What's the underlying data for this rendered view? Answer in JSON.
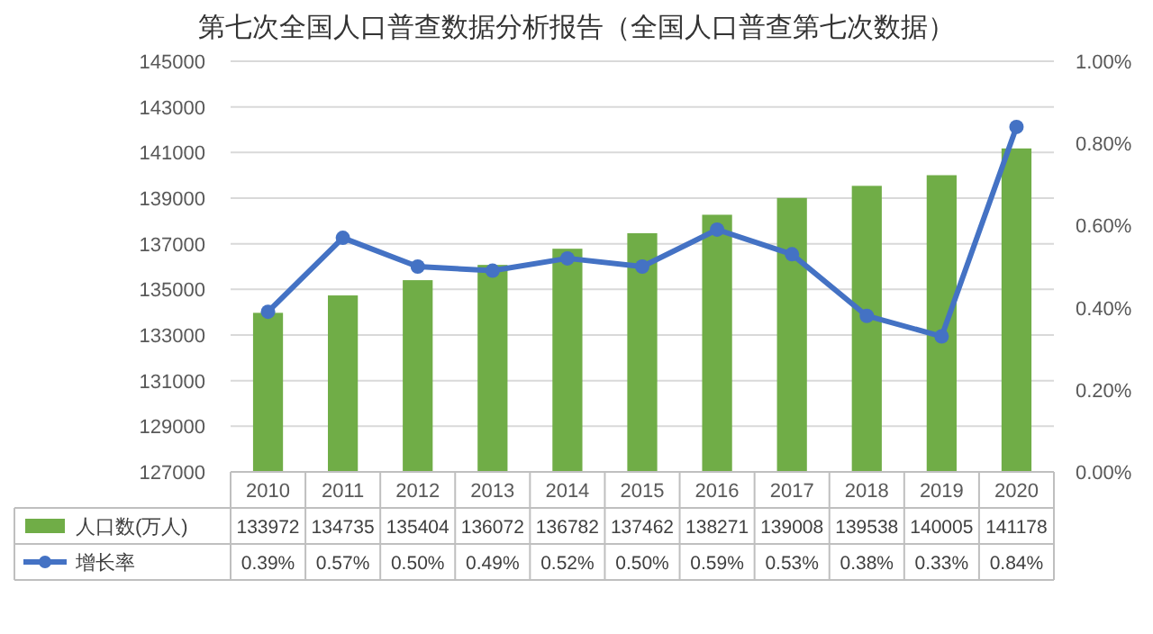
{
  "chart_data": {
    "type": "bar",
    "title": "第七次全国人口普查数据分析报告（全国人口普查第七次数据）",
    "categories": [
      "2010",
      "2011",
      "2012",
      "2013",
      "2014",
      "2015",
      "2016",
      "2017",
      "2018",
      "2019",
      "2020"
    ],
    "series": [
      {
        "name": "人口数(万人)",
        "color": "#70ad47",
        "values": [
          133972,
          134735,
          135404,
          136072,
          136782,
          137462,
          138271,
          139008,
          139538,
          140005,
          141178
        ],
        "value_labels": [
          "133972",
          "134735",
          "135404",
          "136072",
          "136782",
          "137462",
          "138271",
          "139008",
          "139538",
          "140005",
          "141178"
        ]
      },
      {
        "name": "增长率",
        "type": "line",
        "axis": "y2",
        "color": "#4472c4",
        "values": [
          0.39,
          0.57,
          0.5,
          0.49,
          0.52,
          0.5,
          0.59,
          0.53,
          0.38,
          0.33,
          0.84
        ],
        "value_labels": [
          "0.39%",
          "0.57%",
          "0.50%",
          "0.49%",
          "0.52%",
          "0.50%",
          "0.59%",
          "0.53%",
          "0.38%",
          "0.33%",
          "0.84%"
        ]
      }
    ],
    "ylim": [
      127000,
      145000
    ],
    "yticks": [
      127000,
      129000,
      131000,
      133000,
      135000,
      137000,
      139000,
      141000,
      143000,
      145000
    ],
    "y2lim": [
      0,
      1
    ],
    "y2ticks": [
      {
        "value": 0,
        "label": "0.00%"
      },
      {
        "value": 0.2,
        "label": "0.20%"
      },
      {
        "value": 0.4,
        "label": "0.40%"
      },
      {
        "value": 0.6,
        "label": "0.60%"
      },
      {
        "value": 0.8,
        "label": "0.80%"
      },
      {
        "value": 1,
        "label": "1.00%"
      }
    ],
    "grid": "y",
    "marker": "circle",
    "legend": "bottom"
  }
}
